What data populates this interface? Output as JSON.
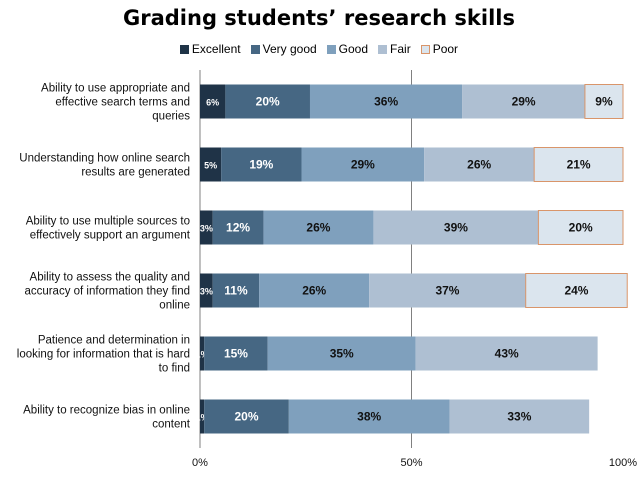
{
  "chart_data": {
    "type": "bar",
    "orientation": "horizontal",
    "stacked": true,
    "title": "Grading students’ research skills",
    "categories": [
      "Ability to use appropriate and effective search terms and queries",
      "Understanding how online search results are generated",
      "Ability to use multiple sources to effectively support an argument",
      "Ability to assess the quality and accuracy of information they find online",
      "Patience and determination in looking for information that is hard to find",
      "Ability to recognize bias in online content"
    ],
    "category_lines": [
      [
        "Ability to use appropriate and",
        "effective search terms and",
        "queries"
      ],
      [
        "Understanding how online search",
        "results are generated"
      ],
      [
        "Ability to use multiple sources to",
        "effectively support an argument"
      ],
      [
        "Ability to assess the quality and",
        "accuracy of information they find",
        "online"
      ],
      [
        "Patience and determination in",
        "looking for information that is hard",
        "to find"
      ],
      [
        "Ability to recognize bias in online",
        "content"
      ]
    ],
    "series": [
      {
        "name": "Excellent",
        "color": "#1f3347",
        "values": [
          6,
          5,
          3,
          3,
          1,
          1
        ]
      },
      {
        "name": "Very good",
        "color": "#466783",
        "values": [
          20,
          19,
          12,
          11,
          15,
          20
        ]
      },
      {
        "name": "Good",
        "color": "#7fa0bd",
        "values": [
          36,
          29,
          26,
          26,
          35,
          38
        ]
      },
      {
        "name": "Fair",
        "color": "#aebfd2",
        "values": [
          29,
          26,
          39,
          37,
          43,
          33
        ]
      },
      {
        "name": "Poor",
        "color": "#dbe5ee",
        "values": [
          9,
          21,
          20,
          24,
          null,
          null
        ]
      }
    ],
    "data_labels": [
      [
        "6%",
        "20%",
        "36%",
        "29%",
        "9%"
      ],
      [
        "5%",
        "19%",
        "29%",
        "26%",
        "21%"
      ],
      [
        "3%",
        "12%",
        "26%",
        "39%",
        "20%"
      ],
      [
        "3%",
        "11%",
        "26%",
        "37%",
        "24%"
      ],
      [
        "1%",
        "15%",
        "35%",
        "43%",
        ""
      ],
      [
        "1%",
        "20%",
        "38%",
        "33%",
        ""
      ]
    ],
    "xlim": [
      0,
      100
    ],
    "x_ticks": [
      "0%",
      "50%",
      "100%"
    ],
    "gridlines": [
      50
    ],
    "legend_position": "top",
    "poor_border_color": "#d9956a"
  }
}
